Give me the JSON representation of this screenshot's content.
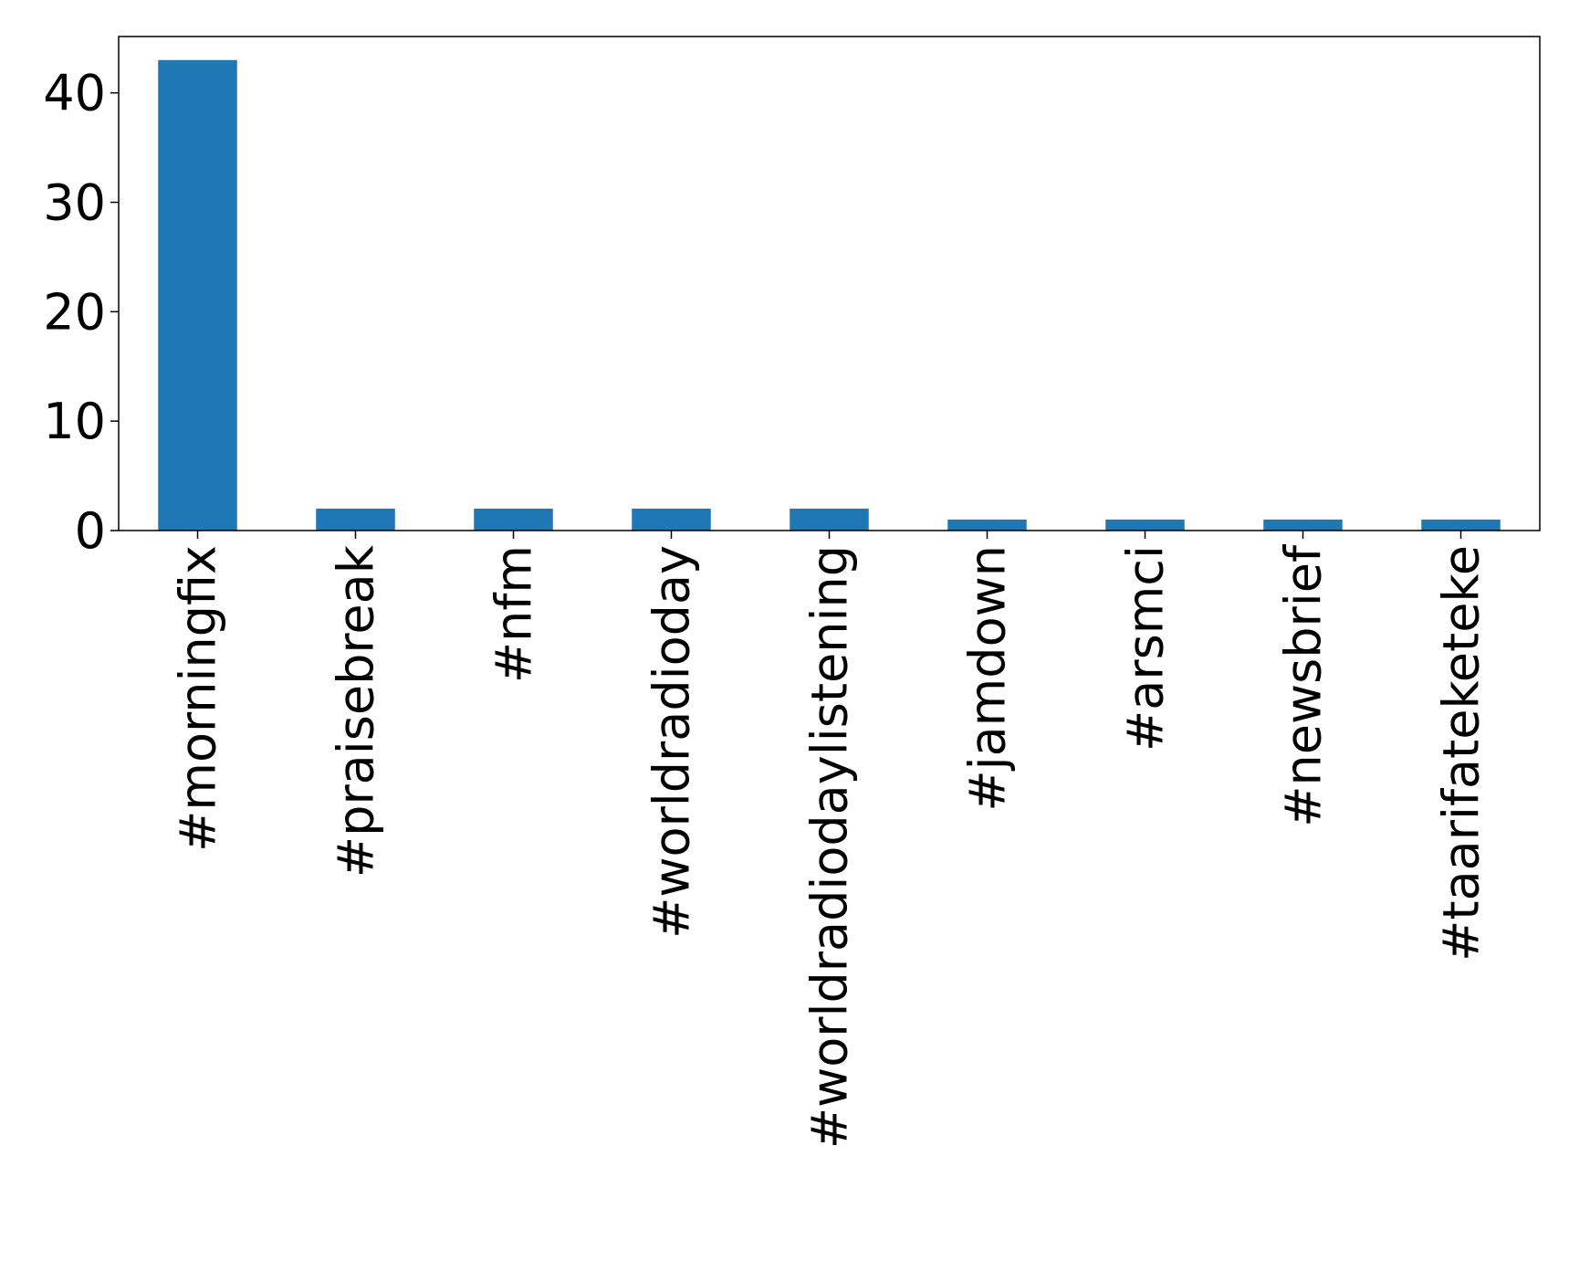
{
  "chart_data": {
    "type": "bar",
    "categories": [
      "#morningfix",
      "#praisebreak",
      "#nfm",
      "#worldradioday",
      "#worldradiodaylistening",
      "#jamdown",
      "#arsmci",
      "#newsbrief",
      "#taarifateketeke"
    ],
    "values": [
      43,
      2,
      2,
      2,
      2,
      1,
      1,
      1,
      1
    ],
    "color": "#1f77b4",
    "ylim": [
      0,
      45.15
    ],
    "yticks": [
      0,
      10,
      20,
      30,
      40
    ],
    "grid": false
  }
}
